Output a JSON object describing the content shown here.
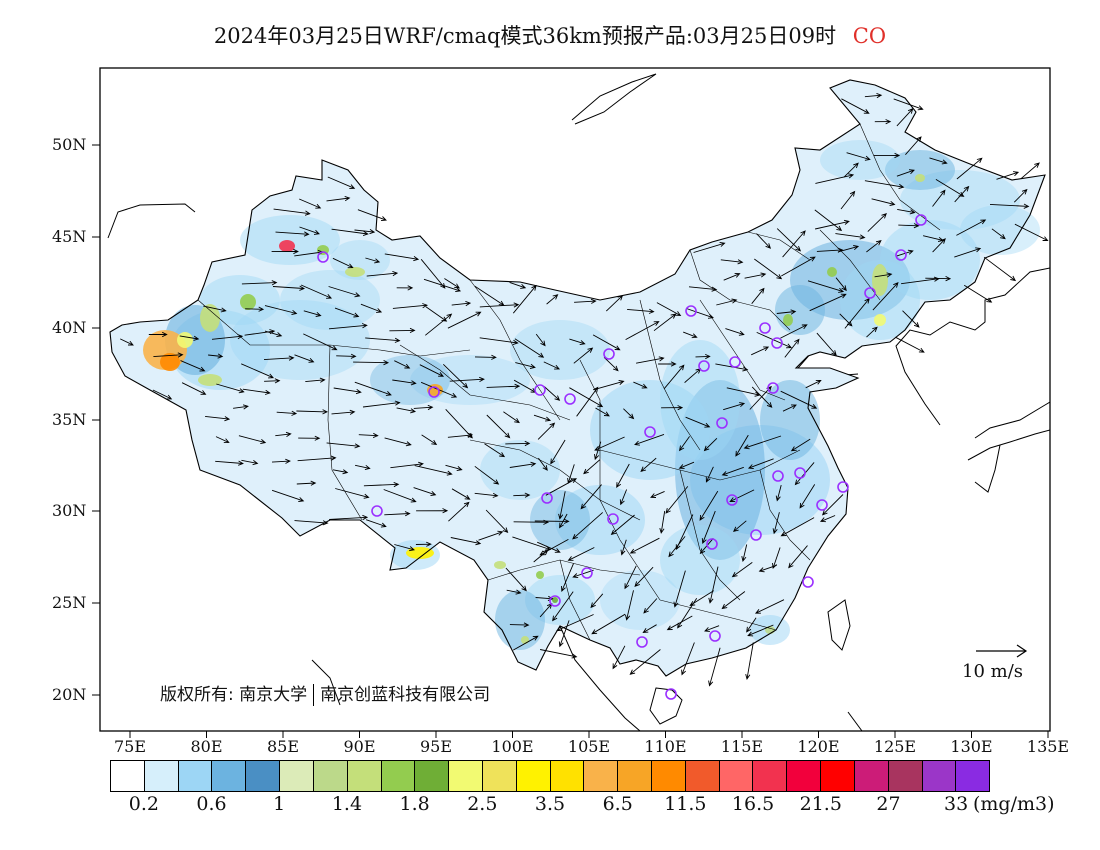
{
  "title": {
    "main": "2024年03月25日WRF/cmaq模式36km预报产品:03月25日09时",
    "pollutant": "CO",
    "pollutant_color": "#e0302a"
  },
  "axes": {
    "lat_labels": [
      "20N",
      "25N",
      "30N",
      "35N",
      "40N",
      "45N",
      "50N"
    ],
    "lon_labels": [
      "75E",
      "80E",
      "85E",
      "90E",
      "95E",
      "100E",
      "105E",
      "110E",
      "115E",
      "120E",
      "125E",
      "130E",
      "135E"
    ]
  },
  "legend": {
    "unit": "(mg/m3)",
    "colors": [
      "#ffffff",
      "#d6effb",
      "#9dd6f5",
      "#6cb3e0",
      "#4a8fc4",
      "#dcebb8",
      "#bcd98a",
      "#c4df7a",
      "#93cc4f",
      "#6fae36",
      "#f2fa72",
      "#efe25a",
      "#fff200",
      "#ffe100",
      "#f9b24a",
      "#f7a526",
      "#ff8a00",
      "#f15a2b",
      "#ff6666",
      "#f2324f",
      "#f2003c",
      "#ff0000",
      "#cc1c78",
      "#a8345f",
      "#9b36c8",
      "#8a2be2"
    ],
    "labels": [
      "0.2",
      "0.6",
      "1",
      "1.4",
      "1.8",
      "2.5",
      "3.5",
      "6.5",
      "11.5",
      "16.5",
      "21.5",
      "27",
      "33"
    ]
  },
  "wind_reference": {
    "label": "10 m/s"
  },
  "copyright": {
    "prefix": "版权所有:",
    "org1": "南京大学",
    "org2": "南京创蓝科技有限公司"
  },
  "colors": {
    "station_marker": "#9b30ff",
    "arrow": "#000000",
    "border": "#000000"
  }
}
